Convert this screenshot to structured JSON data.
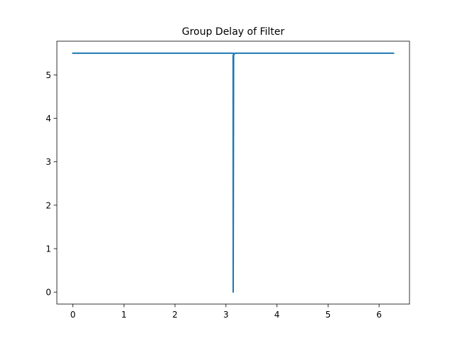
{
  "chart_data": {
    "type": "line",
    "title": "Group Delay of Filter",
    "xlabel": "",
    "ylabel": "",
    "xlim": [
      -0.314,
      6.597
    ],
    "ylim": [
      -0.275,
      5.775
    ],
    "xticks": [
      "0",
      "1",
      "2",
      "3",
      "4",
      "5",
      "6"
    ],
    "yticks": [
      "0",
      "1",
      "2",
      "3",
      "4",
      "5"
    ],
    "grid": false,
    "series": [
      {
        "x": [
          0,
          3.1,
          3.14,
          3.1416,
          3.15,
          3.1416,
          3.14,
          3.18,
          6.2832
        ],
        "y": [
          5.5,
          5.5,
          5.5,
          5.5,
          5.5,
          0.0,
          5.45,
          5.5,
          5.5
        ],
        "color": "#1f77b4"
      }
    ]
  }
}
